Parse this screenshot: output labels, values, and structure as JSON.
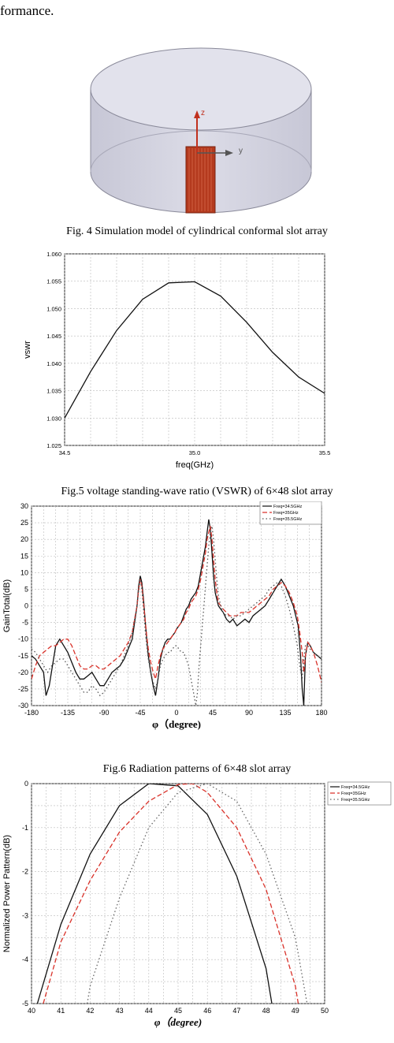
{
  "top_text": "formance.",
  "figures": [
    {
      "id": "fig4",
      "caption": "Fig. 4 Simulation model of cylindrical conformal slot array",
      "axis_z": "z",
      "axis_y": "y"
    },
    {
      "id": "fig5",
      "caption": "Fig.5 voltage standing-wave ratio (VSWR) of 6×48 slot array"
    },
    {
      "id": "fig6",
      "caption": "Fig.6 Radiation patterns of 6×48 slot array"
    },
    {
      "id": "fig7",
      "caption": ""
    }
  ],
  "colors": {
    "red": "#d9322a",
    "cylinder": "#d8d8e4",
    "slot": "#b43a1e"
  },
  "chart_data": [
    {
      "type": "line",
      "xlabel": "freq(GHz)",
      "ylabel": "vswr",
      "xlim": [
        34.5,
        35.5
      ],
      "ylim": [
        1.025,
        1.06
      ],
      "xticks": [
        "34.5",
        "35.0",
        "35.5"
      ],
      "yticks": [
        "1.025",
        "1.030",
        "1.035",
        "1.040",
        "1.045",
        "1.050",
        "1.055",
        "1.060"
      ],
      "grid": true,
      "series": [
        {
          "x": [
            34.5,
            34.6,
            34.7,
            34.8,
            34.9,
            35.0,
            35.1,
            35.2,
            35.3,
            35.4,
            35.5
          ],
          "y": [
            1.03,
            1.0385,
            1.046,
            1.0517,
            1.0547,
            1.0549,
            1.0523,
            1.0475,
            1.042,
            1.0375,
            1.0345
          ]
        }
      ]
    },
    {
      "type": "line",
      "xlabel": "φ（degree)",
      "ylabel": "GainTotal(dB)",
      "xlim": [
        -180,
        180
      ],
      "ylim": [
        -30,
        30
      ],
      "xticks": [
        "-180",
        "-135",
        "-90",
        "-45",
        "0",
        "45",
        "90",
        "135",
        "180"
      ],
      "yticks": [
        "-30",
        "-25",
        "-20",
        "-15",
        "-10",
        "-5",
        "0",
        "5",
        "10",
        "15",
        "20",
        "25",
        "30"
      ],
      "grid": true,
      "legend_position": "top-right",
      "series": [
        {
          "name": "Freq=34.5GHz",
          "color": "#111111",
          "dash": "solid",
          "x": [
            -180,
            -175,
            -170,
            -165,
            -162,
            -158,
            -154,
            -150,
            -145,
            -140,
            -135,
            -130,
            -125,
            -120,
            -115,
            -110,
            -105,
            -100,
            -95,
            -90,
            -85,
            -80,
            -75,
            -70,
            -65,
            -60,
            -55,
            -52,
            -49,
            -47,
            -45,
            -43,
            -41,
            -39,
            -37,
            -35,
            -32,
            -29,
            -26,
            -23,
            -20,
            -17,
            -14,
            -11,
            -8,
            -5,
            -2,
            0,
            3,
            6,
            9,
            12,
            15,
            18,
            21,
            24,
            27,
            30,
            33,
            36,
            38,
            40,
            42,
            44,
            46,
            48,
            50,
            52,
            55,
            58,
            62,
            66,
            70,
            75,
            80,
            85,
            90,
            95,
            100,
            105,
            110,
            115,
            120,
            125,
            130,
            135,
            140,
            145,
            148,
            151,
            154,
            156,
            158,
            160,
            163,
            166,
            170,
            175,
            180
          ],
          "y": [
            -15,
            -16,
            -18,
            -20,
            -27,
            -24,
            -18,
            -12,
            -10,
            -12,
            -14,
            -17,
            -20,
            -22,
            -22,
            -21,
            -20,
            -22,
            -24,
            -24,
            -22,
            -20,
            -19,
            -18,
            -16,
            -13,
            -10,
            -5,
            0,
            6,
            9,
            7,
            2,
            -4,
            -10,
            -15,
            -20,
            -24,
            -27,
            -22,
            -16,
            -13,
            -11,
            -10,
            -10,
            -9,
            -8,
            -7,
            -6,
            -5,
            -3,
            -1,
            0,
            2,
            3,
            4,
            6,
            10,
            14,
            18,
            22,
            26,
            23,
            16,
            9,
            4,
            2,
            0,
            -1,
            -2,
            -4,
            -5,
            -4,
            -6,
            -5,
            -4,
            -5,
            -3,
            -2,
            -1,
            0,
            2,
            4,
            6,
            8,
            6,
            3,
            0,
            -3,
            -6,
            -15,
            -25,
            -30,
            -15,
            -11,
            -12,
            -14,
            -15,
            -16
          ]
        },
        {
          "name": "Freq=35GHz",
          "color": "#d9322a",
          "dash": "6,3",
          "x": [
            -180,
            -175,
            -170,
            -165,
            -160,
            -155,
            -150,
            -145,
            -140,
            -135,
            -130,
            -125,
            -120,
            -115,
            -110,
            -105,
            -100,
            -95,
            -90,
            -85,
            -80,
            -75,
            -70,
            -65,
            -60,
            -55,
            -52,
            -49,
            -47,
            -45,
            -43,
            -41,
            -39,
            -37,
            -35,
            -32,
            -29,
            -26,
            -23,
            -20,
            -17,
            -14,
            -11,
            -8,
            -5,
            -2,
            0,
            3,
            6,
            9,
            12,
            15,
            18,
            21,
            24,
            27,
            30,
            33,
            36,
            38,
            40,
            42,
            44,
            46,
            48,
            50,
            52,
            55,
            58,
            62,
            66,
            70,
            75,
            80,
            85,
            90,
            95,
            100,
            105,
            110,
            115,
            120,
            125,
            130,
            135,
            140,
            145,
            150,
            153,
            156,
            158,
            160,
            163,
            166,
            170,
            175,
            180
          ],
          "y": [
            -22,
            -18,
            -15,
            -14,
            -13,
            -12,
            -12,
            -11,
            -10,
            -10,
            -12,
            -15,
            -18,
            -19,
            -19,
            -18,
            -18,
            -19,
            -19,
            -18,
            -17,
            -16,
            -15,
            -13,
            -11,
            -8,
            -4,
            0,
            5,
            8,
            6,
            1,
            -4,
            -9,
            -13,
            -17,
            -20,
            -22,
            -18,
            -15,
            -13,
            -12,
            -11,
            -10,
            -9,
            -8,
            -7,
            -6,
            -5,
            -4,
            -2,
            -1,
            1,
            2,
            3,
            5,
            8,
            12,
            16,
            20,
            22,
            24,
            20,
            14,
            8,
            4,
            1,
            0,
            -1,
            -2,
            -3,
            -3,
            -3,
            -2,
            -2,
            -2,
            -1,
            0,
            1,
            2,
            3,
            5,
            6,
            7,
            6,
            4,
            1,
            -3,
            -8,
            -14,
            -20,
            -15,
            -11,
            -12,
            -14,
            -18,
            -23
          ]
        },
        {
          "name": "Freq=35.5GHz",
          "color": "#555555",
          "dash": "1.5,3",
          "x": [
            -180,
            -175,
            -170,
            -165,
            -160,
            -155,
            -150,
            -145,
            -140,
            -135,
            -130,
            -125,
            -120,
            -115,
            -110,
            -105,
            -100,
            -95,
            -90,
            -85,
            -80,
            -75,
            -70,
            -65,
            -60,
            -55,
            -52,
            -49,
            -47,
            -45,
            -43,
            -41,
            -39,
            -37,
            -35,
            -32,
            -29,
            -26,
            -23,
            -20,
            -17,
            -14,
            -11,
            -8,
            -5,
            -2,
            0,
            3,
            6,
            9,
            12,
            15,
            18,
            21,
            24,
            26,
            28,
            30,
            32,
            34,
            36,
            38,
            40,
            42,
            44,
            46,
            48,
            50,
            52,
            55,
            58,
            62,
            66,
            70,
            75,
            80,
            85,
            90,
            95,
            100,
            105,
            110,
            115,
            120,
            125,
            130,
            135,
            140,
            145,
            150,
            153,
            156,
            158,
            160,
            163,
            166,
            170,
            175,
            180
          ],
          "y": [
            -13,
            -14,
            -16,
            -18,
            -20,
            -18,
            -17,
            -16,
            -16,
            -18,
            -20,
            -22,
            -24,
            -26,
            -26,
            -24,
            -25,
            -27,
            -26,
            -24,
            -22,
            -20,
            -18,
            -15,
            -12,
            -8,
            -4,
            0,
            5,
            8,
            5,
            -1,
            -7,
            -12,
            -16,
            -20,
            -23,
            -25,
            -22,
            -18,
            -16,
            -15,
            -14,
            -14,
            -13,
            -12,
            -12,
            -13,
            -14,
            -14,
            -16,
            -18,
            -22,
            -26,
            -30,
            -26,
            -18,
            -12,
            -6,
            0,
            6,
            12,
            18,
            22,
            24,
            20,
            14,
            8,
            3,
            0,
            -2,
            -3,
            -3,
            -4,
            -3,
            -3,
            -2,
            -1,
            0,
            1,
            2,
            3,
            5,
            6,
            7,
            6,
            3,
            -1,
            -6,
            -12,
            -18,
            -22,
            -16,
            -12,
            -12,
            -13,
            -14,
            -15,
            -16
          ]
        }
      ]
    },
    {
      "type": "line",
      "xlabel": "φ（degree)",
      "ylabel": "Normalized Power Pattern(dB)",
      "xlim": [
        40,
        50
      ],
      "ylim": [
        -5,
        0
      ],
      "xticks": [
        "40",
        "41",
        "42",
        "43",
        "44",
        "45",
        "46",
        "47",
        "48",
        "49",
        "50"
      ],
      "yticks": [
        "-5",
        "-4",
        "-3",
        "-2",
        "-1",
        "0"
      ],
      "grid": true,
      "legend_position": "top-right",
      "series": [
        {
          "name": "Freq=34.5GHz",
          "color": "#111111",
          "dash": "solid",
          "x": [
            40.2,
            41,
            42,
            43,
            44,
            45,
            46,
            47,
            48,
            48.2
          ],
          "y": [
            -5.0,
            -3.2,
            -1.6,
            -0.5,
            0.0,
            -0.05,
            -0.7,
            -2.1,
            -4.2,
            -5.0
          ]
        },
        {
          "name": "Freq=35GHz",
          "color": "#d9322a",
          "dash": "6,3",
          "x": [
            40.4,
            41,
            42,
            43,
            44,
            45,
            45.5,
            46,
            47,
            48,
            49,
            49.1
          ],
          "y": [
            -5.0,
            -3.6,
            -2.2,
            -1.1,
            -0.4,
            -0.02,
            0.0,
            -0.2,
            -1.0,
            -2.4,
            -4.6,
            -5.0
          ]
        },
        {
          "name": "Freq=35.5GHz",
          "color": "#666666",
          "dash": "1.5,3",
          "x": [
            41.9,
            42,
            43,
            44,
            45,
            46,
            47,
            48,
            49,
            49.4
          ],
          "y": [
            -5.0,
            -4.6,
            -2.6,
            -1.0,
            -0.2,
            0.0,
            -0.4,
            -1.6,
            -3.5,
            -5.0
          ]
        }
      ]
    }
  ]
}
